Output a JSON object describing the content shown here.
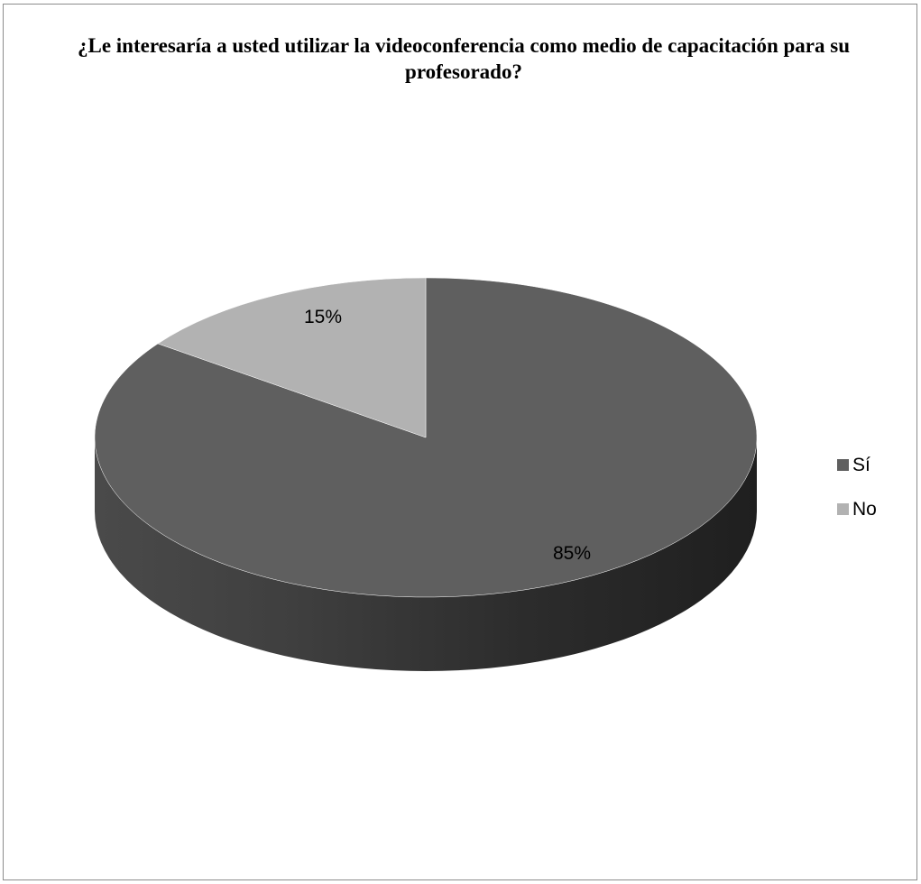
{
  "chart_data": {
    "type": "pie",
    "title": "¿Le interesaría a usted utilizar la videoconferencia como medio de capacitación para su profesorado?",
    "categories": [
      "Sí",
      "No"
    ],
    "values": [
      85,
      15
    ],
    "data_labels": [
      "85%",
      "15%"
    ],
    "colors": [
      "#5f5f5f",
      "#b2b2b2"
    ],
    "style": "3d",
    "legend": "right"
  }
}
